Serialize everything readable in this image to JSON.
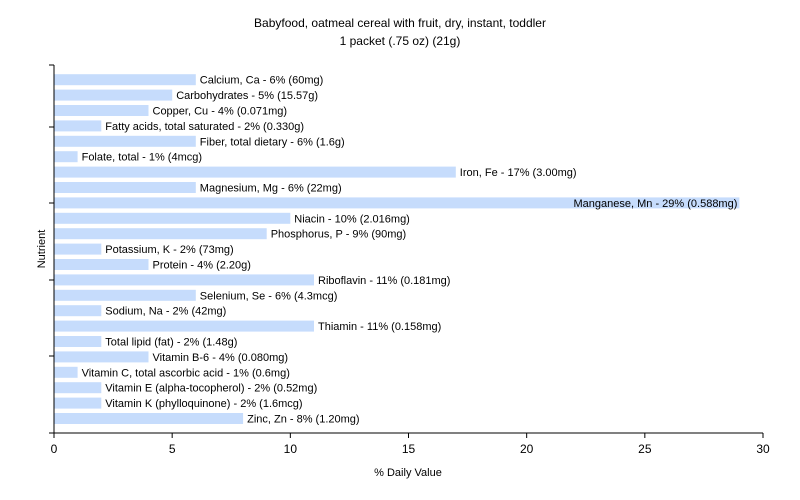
{
  "chart_data": {
    "type": "bar",
    "orientation": "horizontal",
    "title": "Babyfood, oatmeal cereal with fruit, dry, instant, toddler",
    "subtitle": "1 packet (.75 oz) (21g)",
    "xlabel": "% Daily Value",
    "ylabel": "Nutrient",
    "xlim": [
      0,
      30
    ],
    "xticks": [
      "0",
      "5",
      "10",
      "15",
      "20",
      "25",
      "30"
    ],
    "grid": false,
    "bar_color": "#c6dcfc",
    "categories": [
      "Calcium, Ca",
      "Carbohydrates",
      "Copper, Cu",
      "Fatty acids, total saturated",
      "Fiber, total dietary",
      "Folate, total",
      "Iron, Fe",
      "Magnesium, Mg",
      "Manganese, Mn",
      "Niacin",
      "Phosphorus, P",
      "Potassium, K",
      "Protein",
      "Riboflavin",
      "Selenium, Se",
      "Sodium, Na",
      "Thiamin",
      "Total lipid (fat)",
      "Vitamin B-6",
      "Vitamin C, total ascorbic acid",
      "Vitamin E (alpha-tocopherol)",
      "Vitamin K (phylloquinone)",
      "Zinc, Zn"
    ],
    "values": [
      6,
      5,
      4,
      2,
      6,
      1,
      17,
      6,
      29,
      10,
      9,
      2,
      4,
      11,
      6,
      2,
      11,
      2,
      4,
      1,
      2,
      2,
      8
    ],
    "labels": [
      "Calcium, Ca - 6% (60mg)",
      "Carbohydrates - 5% (15.57g)",
      "Copper, Cu - 4% (0.071mg)",
      "Fatty acids, total saturated - 2% (0.330g)",
      "Fiber, total dietary - 6% (1.6g)",
      "Folate, total - 1% (4mcg)",
      "Iron, Fe - 17% (3.00mg)",
      "Magnesium, Mg - 6% (22mg)",
      "Manganese, Mn - 29% (0.588mg)",
      "Niacin - 10% (2.016mg)",
      "Phosphorus, P - 9% (90mg)",
      "Potassium, K - 2% (73mg)",
      "Protein - 4% (2.20g)",
      "Riboflavin - 11% (0.181mg)",
      "Selenium, Se - 6% (4.3mcg)",
      "Sodium, Na - 2% (42mg)",
      "Thiamin - 11% (0.158mg)",
      "Total lipid (fat) - 2% (1.48g)",
      "Vitamin B-6 - 4% (0.080mg)",
      "Vitamin C, total ascorbic acid - 1% (0.6mg)",
      "Vitamin E (alpha-tocopherol) - 2% (0.52mg)",
      "Vitamin K (phylloquinone) - 2% (1.6mcg)",
      "Zinc, Zn - 8% (1.20mg)"
    ]
  }
}
